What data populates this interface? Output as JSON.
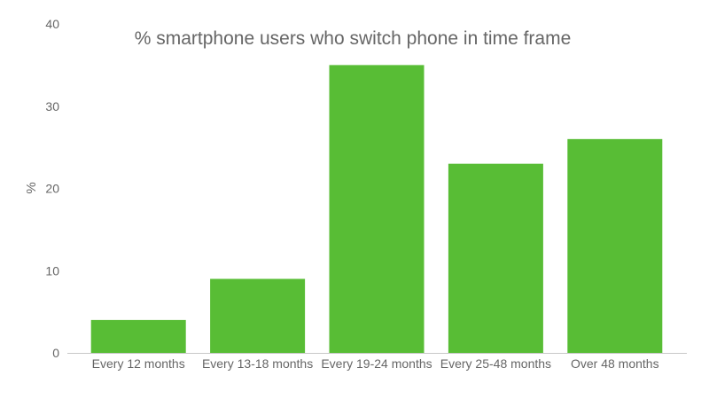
{
  "chart_data": {
    "type": "bar",
    "title": "% smartphone users who switch phone in time frame",
    "xlabel": "",
    "ylabel": "%",
    "categories": [
      "Every 12 months",
      "Every 13-18 months",
      "Every 19-24 months",
      "Every 25-48 months",
      "Over 48 months"
    ],
    "values": [
      4,
      9,
      35,
      23,
      26
    ],
    "ylim": [
      0,
      40
    ],
    "yticks": [
      0,
      10,
      20,
      30,
      40
    ],
    "grid": false,
    "legend": "none",
    "bar_color": "#58bd35"
  }
}
